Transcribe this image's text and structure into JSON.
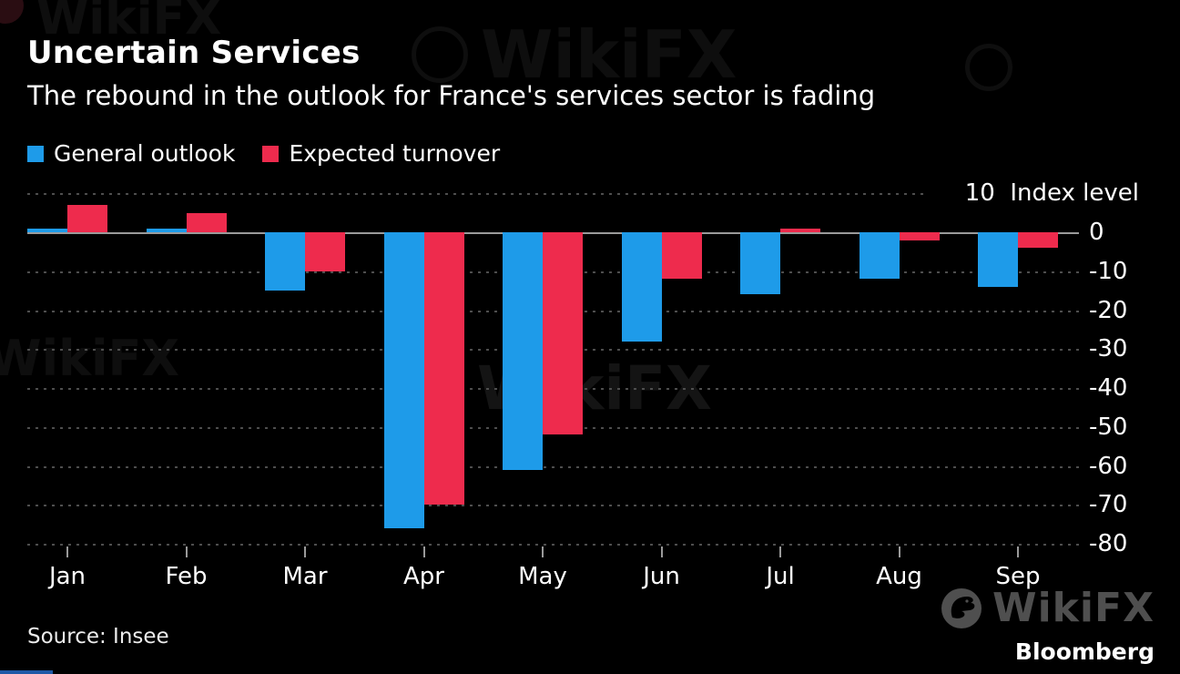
{
  "chart_data": {
    "type": "bar",
    "title": "Uncertain Services",
    "subtitle": "The rebound in the outlook for France's services sector is fading",
    "categories": [
      "Jan",
      "Feb",
      "Mar",
      "Apr",
      "May",
      "Jun",
      "Jul",
      "Aug",
      "Sep"
    ],
    "series": [
      {
        "name": "General outlook",
        "color": "#1e9be9",
        "values": [
          1,
          1,
          -15,
          -76,
          -61,
          -28,
          -16,
          -12,
          -14
        ]
      },
      {
        "name": "Expected turnover",
        "color": "#ee2b4d",
        "values": [
          7,
          5,
          -10,
          -70,
          -52,
          -12,
          1,
          -2,
          -4
        ]
      }
    ],
    "y_axis_label": "Index level",
    "yticks": [
      10,
      0,
      -10,
      -20,
      -30,
      -40,
      -50,
      -60,
      -70,
      -80
    ],
    "ylim": [
      -80,
      10
    ],
    "grid": "dotted-horizontal",
    "legend_position": "top-left",
    "colors": {
      "background": "#000000",
      "gridline": "#4e4e4e",
      "zero_line": "#9a9a9a",
      "text": "#ffffff"
    }
  },
  "footer": {
    "source": "Source: Insee",
    "brand": "Bloomberg"
  },
  "watermark": {
    "text": "WikiFX"
  }
}
